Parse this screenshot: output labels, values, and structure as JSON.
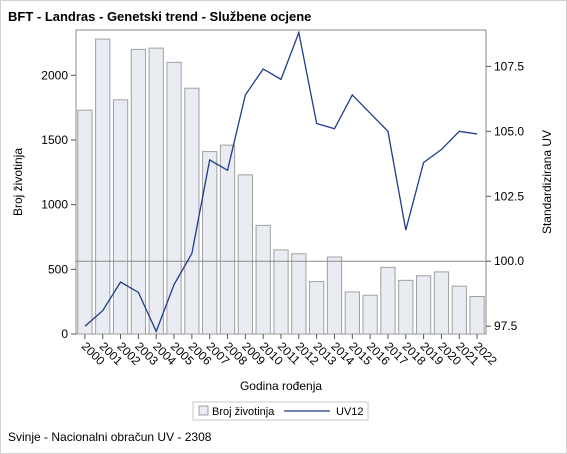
{
  "chart_data": {
    "type": "bar",
    "title": "BFT - Landras - Genetski trend - Službene ocjene",
    "footnote": "Svinje - Nacionalni obračun UV - 2308",
    "xlabel": "Godina rođenja",
    "ylabel": "Broj životinja",
    "y2label": "Standardizirana UV",
    "categories": [
      "2000",
      "2001",
      "2002",
      "2003",
      "2004",
      "2005",
      "2006",
      "2007",
      "2008",
      "2009",
      "2010",
      "2011",
      "2012",
      "2013",
      "2014",
      "2015",
      "2016",
      "2017",
      "2018",
      "2019",
      "2020",
      "2021",
      "2022"
    ],
    "ylim": [
      0,
      2350
    ],
    "yticks": [
      0,
      500,
      1000,
      1500,
      2000
    ],
    "y2lim": [
      97.2,
      108.9
    ],
    "y2ticks": [
      97.5,
      100.0,
      102.5,
      105.0,
      107.5
    ],
    "y2ticklabels": [
      "97.5",
      "100.0",
      "102.5",
      "105.0",
      "107.5"
    ],
    "reference_line_y2": 100.0,
    "series": [
      {
        "name": "Broj životinja",
        "type": "bar",
        "axis": "left",
        "color": "#e9ecf2",
        "stroke": "#a0a0a0",
        "values": [
          1730,
          2280,
          1810,
          2200,
          2210,
          2100,
          1900,
          1410,
          1460,
          1230,
          840,
          650,
          620,
          405,
          595,
          325,
          300,
          515,
          415,
          450,
          480,
          370,
          290
        ]
      },
      {
        "name": "UV12",
        "type": "line",
        "axis": "right",
        "color": "#1f3c88",
        "values": [
          97.5,
          98.1,
          99.2,
          98.8,
          97.3,
          99.1,
          100.3,
          103.9,
          103.5,
          106.4,
          107.4,
          107.0,
          108.8,
          105.3,
          105.1,
          106.4,
          105.7,
          105.0,
          101.2,
          103.8,
          104.3,
          105.0,
          104.9
        ]
      }
    ],
    "legend_position": "bottom",
    "grid": false
  }
}
